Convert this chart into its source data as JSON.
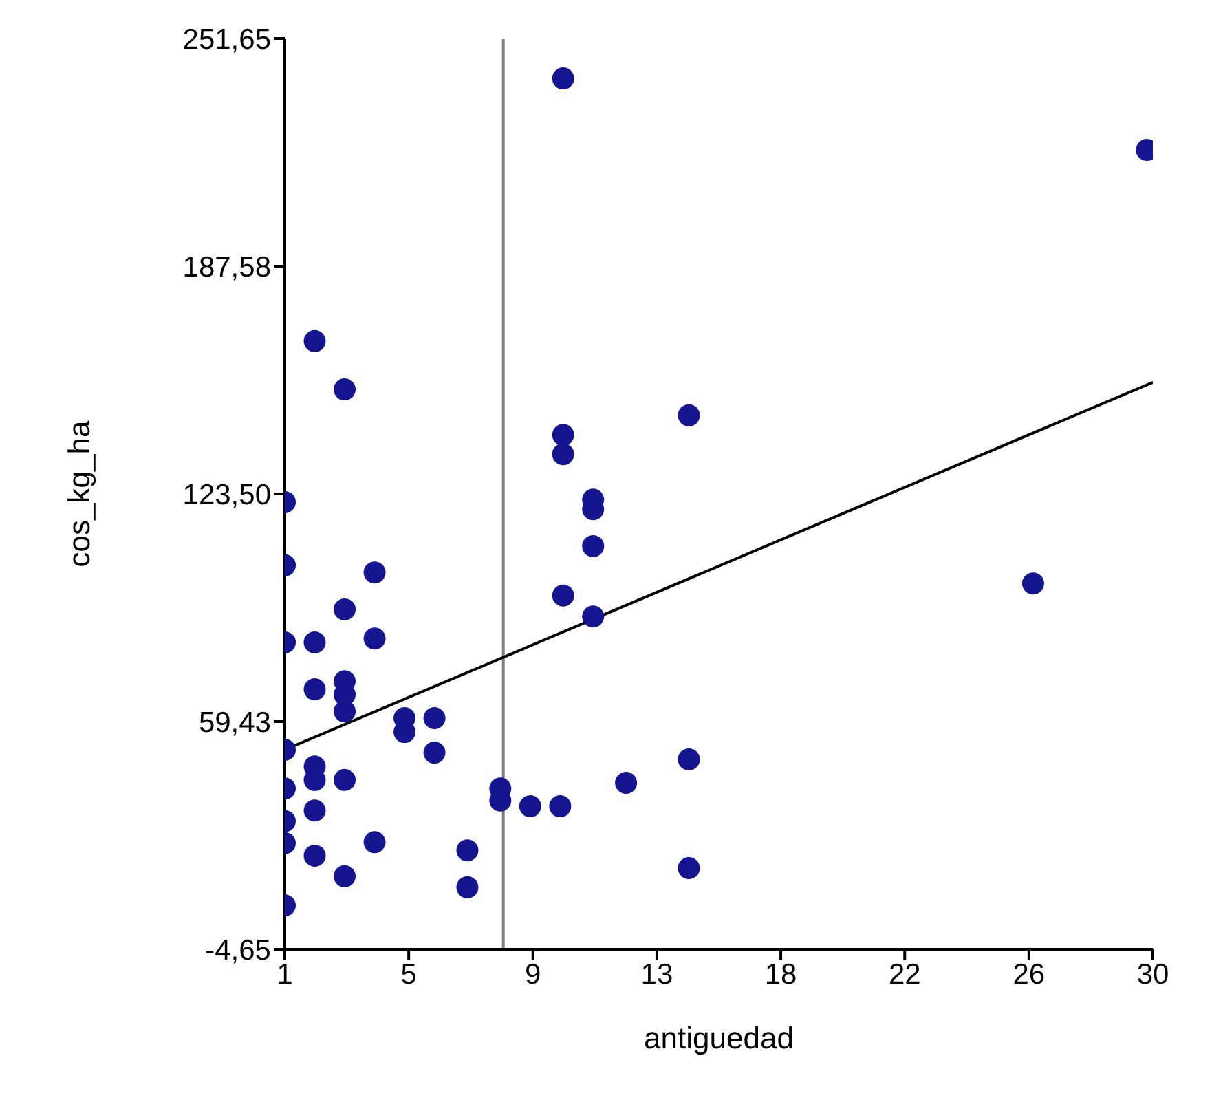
{
  "chart_data": {
    "type": "scatter",
    "xlabel": "antiguedad",
    "ylabel": "cos_kg_ha",
    "xlim": [
      1,
      30
    ],
    "ylim": [
      -4.65,
      251.65
    ],
    "xticks": [
      {
        "value": 1,
        "label": "1"
      },
      {
        "value": 5.14,
        "label": "5"
      },
      {
        "value": 9.29,
        "label": "9"
      },
      {
        "value": 13.43,
        "label": "13"
      },
      {
        "value": 17.57,
        "label": "18"
      },
      {
        "value": 21.71,
        "label": "22"
      },
      {
        "value": 25.86,
        "label": "26"
      },
      {
        "value": 30,
        "label": "30"
      }
    ],
    "yticks": [
      {
        "value": -4.65,
        "label": "-4,65"
      },
      {
        "value": 59.43,
        "label": "59,43"
      },
      {
        "value": 123.5,
        "label": "123,50"
      },
      {
        "value": 187.58,
        "label": "187,58"
      },
      {
        "value": 251.65,
        "label": "251,65"
      }
    ],
    "ref_lines": [
      {
        "axis": "x",
        "value": 8.3,
        "label": null,
        "color": "#808080"
      }
    ],
    "series": [
      {
        "color": "#15168f",
        "marker": "circle",
        "x": [
          2,
          3,
          1,
          1,
          4,
          3,
          1,
          2,
          4,
          2,
          3,
          3,
          3,
          5,
          5,
          6,
          6,
          1,
          2,
          2,
          3,
          1,
          2,
          1,
          1,
          4,
          2,
          3,
          1,
          7.1,
          7.1,
          8.2,
          8.2,
          9.2,
          10.2,
          10.3,
          29.8,
          14.5,
          10.3,
          10.3,
          11.3,
          11.3,
          11.3,
          10.3,
          11.3,
          26,
          14.5,
          12.4,
          14.5
        ],
        "values": [
          166.5,
          152.9,
          121.2,
          103.4,
          101.4,
          91.0,
          81.7,
          81.7,
          82.8,
          68.5,
          70.8,
          67.0,
          62.3,
          60.4,
          56.5,
          60.4,
          50.7,
          51.5,
          46.8,
          43.0,
          43.0,
          40.6,
          34.4,
          31.4,
          25.2,
          25.5,
          21.7,
          15.9,
          7.7,
          23.2,
          12.8,
          40.6,
          37.2,
          35.6,
          35.6,
          240.4,
          220.3,
          145.6,
          140.1,
          134.7,
          121.9,
          119.2,
          108.8,
          94.9,
          89.0,
          98.3,
          48.8,
          42.2,
          18.2
        ]
      },
      {
        "type": "line",
        "color": "#000000",
        "line_style": "solid",
        "x": [
          1,
          30
        ],
        "values": [
          51.5,
          154.9
        ]
      }
    ]
  }
}
